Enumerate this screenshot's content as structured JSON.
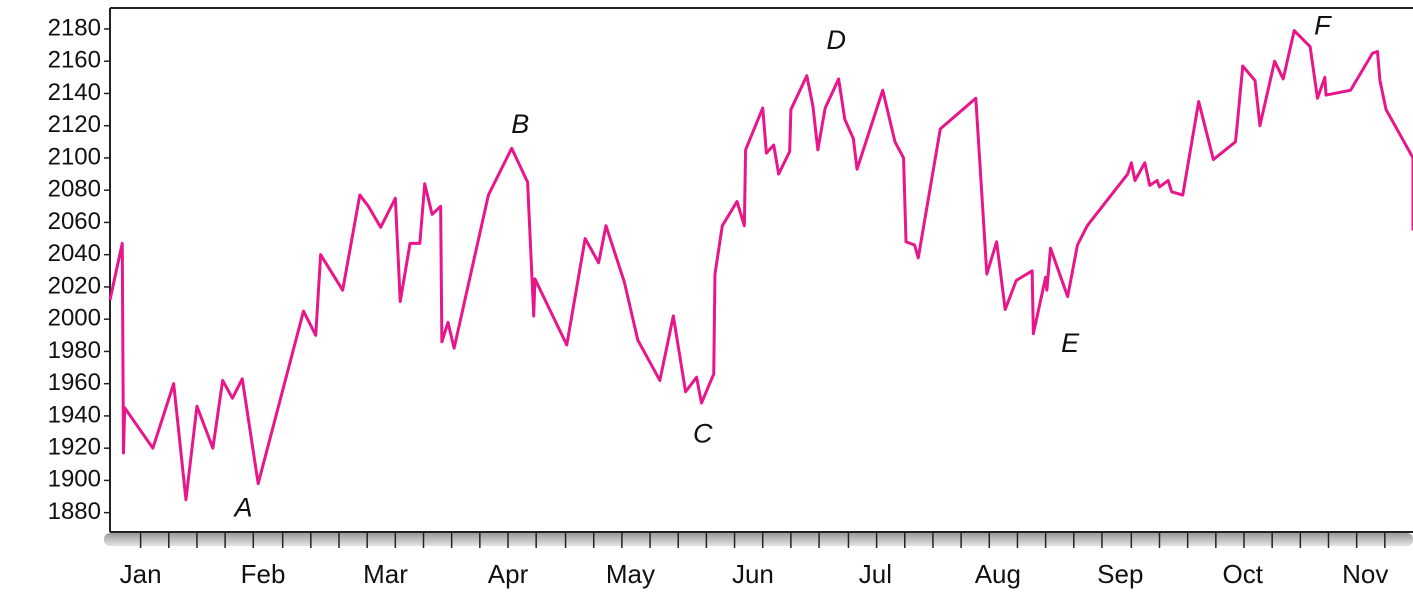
{
  "chart_data": {
    "type": "line",
    "categories": [
      "Jan",
      "Feb",
      "Mar",
      "Apr",
      "May",
      "Jun",
      "Jul",
      "Aug",
      "Sep",
      "Oct",
      "Nov"
    ],
    "series": [
      {
        "color": "#e8168a",
        "x": [
          0.25,
          0.35,
          0.36,
          0.37,
          0.6,
          0.77,
          0.87,
          0.96,
          1.09,
          1.17,
          1.25,
          1.33,
          1.46,
          1.83,
          1.93,
          1.97,
          2.15,
          2.29,
          2.36,
          2.46,
          2.58,
          2.62,
          2.7,
          2.78,
          2.82,
          2.88,
          2.95,
          2.96,
          3.01,
          3.06,
          3.34,
          3.53,
          3.66,
          3.71,
          3.72,
          3.98,
          4.13,
          4.24,
          4.3,
          4.45,
          4.56,
          4.74,
          4.85,
          4.95,
          5.04,
          5.08,
          5.18,
          5.19,
          5.25,
          5.37,
          5.43,
          5.44,
          5.58,
          5.61,
          5.67,
          5.71,
          5.8,
          5.81,
          5.94,
          5.99,
          6.03,
          6.09,
          6.2,
          6.25,
          6.32,
          6.35,
          6.56,
          6.66,
          6.73,
          6.75,
          6.82,
          6.85,
          7.03,
          7.32,
          7.41,
          7.49,
          7.56,
          7.65,
          7.78,
          7.79,
          7.89,
          7.9,
          7.93,
          8.07,
          8.15,
          8.23,
          8.56,
          8.59,
          8.62,
          8.7,
          8.74,
          8.8,
          8.82,
          8.89,
          8.92,
          9.01,
          9.14,
          9.26,
          9.44,
          9.45,
          9.5,
          9.6,
          9.64,
          9.76,
          9.83,
          9.92,
          10.05,
          10.11,
          10.17,
          10.18,
          10.38,
          10.56,
          10.6,
          10.62,
          10.67,
          10.89,
          10.89
        ],
        "values": [
          2012,
          2047,
          1917,
          1945,
          1920,
          1960,
          1888,
          1946,
          1920,
          1962,
          1951,
          1963,
          1898,
          2005,
          1990,
          2040,
          2018,
          2077,
          2070,
          2057,
          2075,
          2011,
          2047,
          2047,
          2084,
          2065,
          2070,
          1986,
          1998,
          1982,
          2077,
          2106,
          2085,
          2002,
          2025,
          1984,
          2050,
          2035,
          2058,
          2023,
          1987,
          1962,
          2002,
          1955,
          1964,
          1948,
          1966,
          2028,
          2058,
          2073,
          2058,
          2105,
          2131,
          2103,
          2108,
          2090,
          2104,
          2130,
          2151,
          2132,
          2105,
          2131,
          2149,
          2124,
          2112,
          2093,
          2142,
          2110,
          2100,
          2048,
          2046,
          2038,
          2118,
          2137,
          2028,
          2048,
          2006,
          2024,
          2030,
          1991,
          2026,
          2018,
          2044,
          2014,
          2046,
          2058,
          2090,
          2097,
          2086,
          2097,
          2083,
          2086,
          2082,
          2086,
          2079,
          2077,
          2135,
          2099,
          2110,
          2117,
          2157,
          2148,
          2120,
          2160,
          2149,
          2179,
          2169,
          2137,
          2150,
          2139,
          2142,
          2165,
          2166,
          2148,
          2130,
          2100,
          2055
        ]
      }
    ],
    "xlim": [
      0.25,
      10.89
    ],
    "xticks": [
      0.5,
      0.73,
      0.96,
      1.19,
      1.42,
      1.66,
      1.89,
      2.12,
      2.35,
      2.58,
      2.81,
      3.04,
      3.27,
      3.5,
      3.73,
      3.97,
      4.2,
      4.43,
      4.66,
      4.89,
      5.12,
      5.35,
      5.58,
      5.81,
      6.04,
      6.28,
      6.51,
      6.74,
      6.97,
      7.2,
      7.43,
      7.66,
      7.89,
      8.12,
      8.35,
      8.59,
      8.82,
      9.05,
      9.28,
      9.51,
      9.74,
      9.97,
      10.2,
      10.43,
      10.66
    ],
    "ylim": [
      1868,
      2193
    ],
    "yticks": [
      1880,
      1900,
      1920,
      1940,
      1960,
      1980,
      2000,
      2020,
      2040,
      2060,
      2080,
      2100,
      2120,
      2140,
      2160,
      2180
    ],
    "annotations": [
      {
        "text": "A",
        "x": 1.34,
        "y": 1882
      },
      {
        "text": "B",
        "x": 3.6,
        "y": 2120
      },
      {
        "text": "C",
        "x": 5.09,
        "y": 1928
      },
      {
        "text": "D",
        "x": 6.18,
        "y": 2172
      },
      {
        "text": "E",
        "x": 8.09,
        "y": 1984
      },
      {
        "text": "F",
        "x": 10.15,
        "y": 2181
      }
    ]
  }
}
